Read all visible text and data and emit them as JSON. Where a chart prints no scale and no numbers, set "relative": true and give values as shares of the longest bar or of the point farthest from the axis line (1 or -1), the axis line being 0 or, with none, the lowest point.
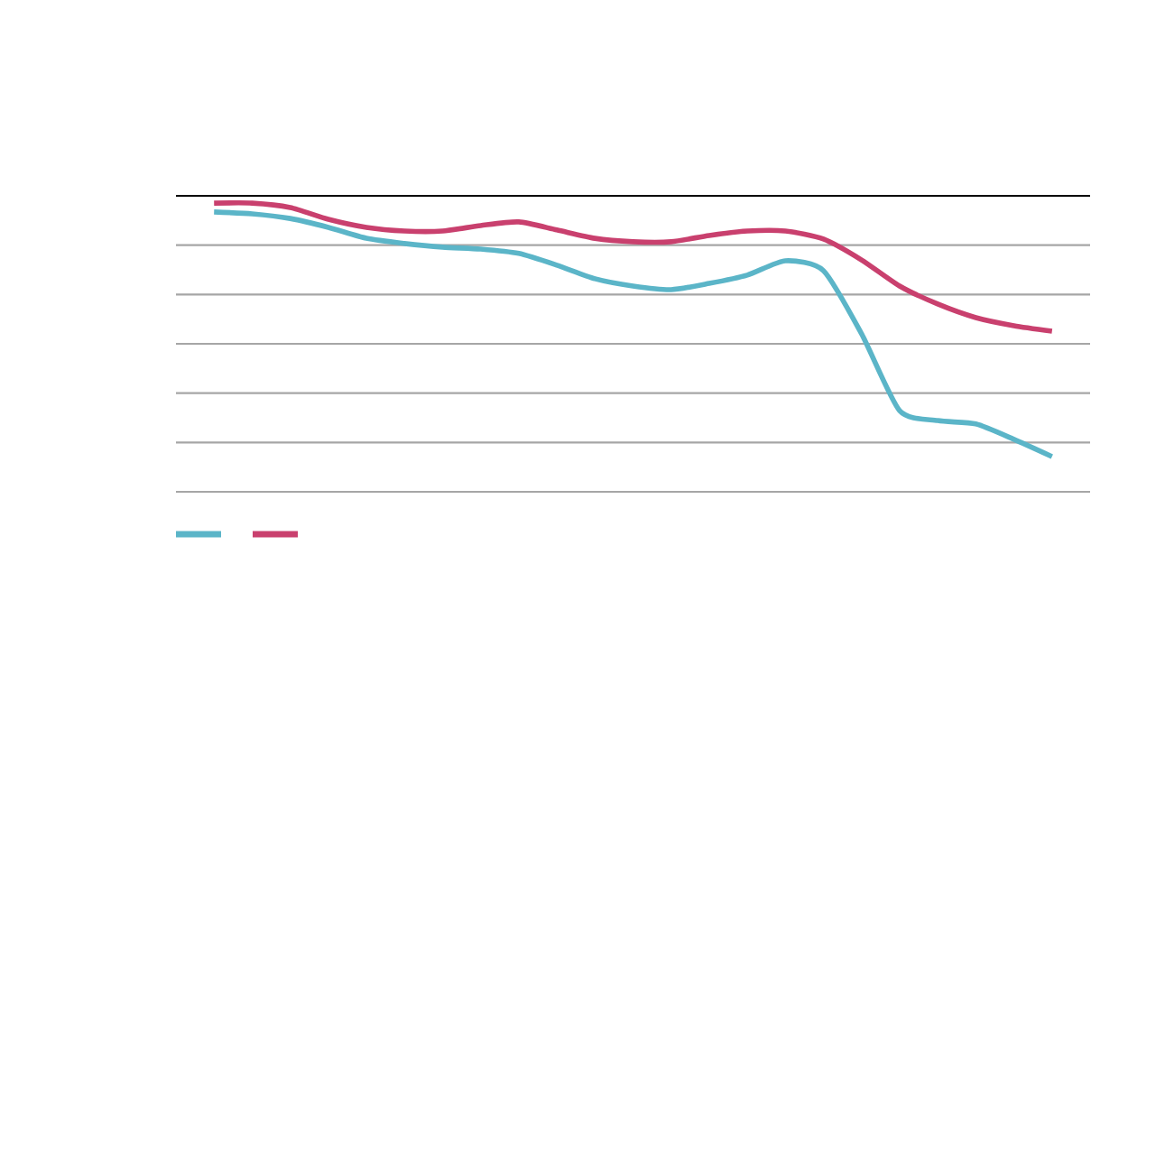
{
  "chart_data": {
    "type": "line",
    "relative": true,
    "grid": "y",
    "line_style": "solid",
    "marker": "none",
    "categories": [
      null,
      null,
      null,
      null,
      null,
      null,
      null,
      null,
      null,
      null,
      null,
      null,
      null,
      null,
      null,
      null,
      null,
      null,
      null,
      null,
      null,
      null,
      null
    ],
    "series": [
      {
        "color": "#5bb5c8",
        "values": [
          -0.062,
          -0.069,
          -0.087,
          -0.121,
          -0.163,
          -0.183,
          -0.197,
          -0.204,
          -0.221,
          -0.266,
          -0.318,
          -0.346,
          -0.36,
          -0.336,
          -0.304,
          -0.249,
          -0.287,
          -0.529,
          -0.824,
          -0.862,
          -0.875,
          -0.934,
          -1
        ]
      },
      {
        "color": "#c9406e",
        "values": [
          -0.028,
          -0.028,
          -0.045,
          -0.09,
          -0.121,
          -0.135,
          -0.135,
          -0.114,
          -0.1,
          -0.131,
          -0.163,
          -0.176,
          -0.176,
          -0.152,
          -0.135,
          -0.135,
          -0.166,
          -0.246,
          -0.346,
          -0.415,
          -0.467,
          -0.498,
          -0.519
        ]
      }
    ]
  }
}
